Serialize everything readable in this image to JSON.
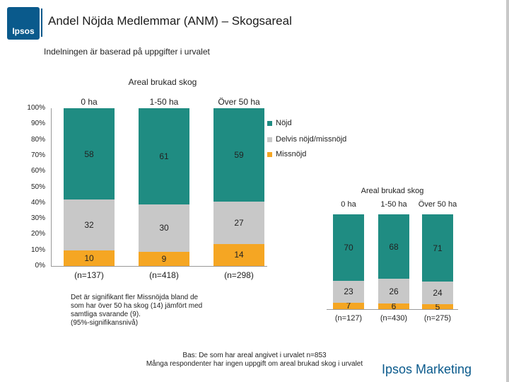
{
  "header": {
    "logo_text": "Ipsos",
    "title": "Andel Nöjda Medlemmar (ANM) – Skogsareal",
    "subtitle": "Indelningen är baserad på uppgifter i urvalet"
  },
  "chart_data": [
    {
      "type": "bar",
      "stacked": true,
      "title": "Areal brukad skog",
      "categories": [
        "0 ha",
        "1-50 ha",
        "Över 50 ha"
      ],
      "n_labels": [
        "(n=137)",
        "(n=418)",
        "(n=298)"
      ],
      "series": [
        {
          "name": "Missnöjd",
          "color": "#f5a623",
          "values": [
            10,
            9,
            14
          ]
        },
        {
          "name": "Delvis nöjd/missnöjd",
          "color": "#c8c8c8",
          "values": [
            32,
            30,
            27
          ]
        },
        {
          "name": "Nöjd",
          "color": "#1f8c82",
          "values": [
            58,
            61,
            59
          ]
        }
      ],
      "yticks": [
        "0%",
        "10%",
        "20%",
        "30%",
        "40%",
        "50%",
        "60%",
        "70%",
        "80%",
        "90%",
        "100%"
      ],
      "ylim": [
        0,
        100
      ],
      "legend": [
        "Nöjd",
        "Delvis nöjd/missnöjd",
        "Missnöjd"
      ],
      "legend_position": "right"
    },
    {
      "type": "bar",
      "stacked": true,
      "title": "Areal brukad skog",
      "categories": [
        "0 ha",
        "1-50 ha",
        "Över 50 ha"
      ],
      "n_labels": [
        "(n=127)",
        "(n=430)",
        "(n=275)"
      ],
      "series": [
        {
          "name": "Missnöjd",
          "color": "#f5a623",
          "values": [
            7,
            6,
            5
          ]
        },
        {
          "name": "Delvis nöjd/missnöjd",
          "color": "#c8c8c8",
          "values": [
            23,
            26,
            24
          ]
        },
        {
          "name": "Nöjd",
          "color": "#1f8c82",
          "values": [
            70,
            68,
            71
          ]
        }
      ],
      "ylim": [
        0,
        100
      ]
    }
  ],
  "note": {
    "lines": [
      "Det är signifikant fler Missnöjda bland de",
      "som har över 50 ha skog (14) jämfört med",
      "samtliga svarande (9).",
      "(95%-signifikansnivå)"
    ]
  },
  "footer": {
    "line1": "Bas: De som har areal angivet i urvalet n=853",
    "line2": "Många respondenter har ingen uppgift om areal brukad skog i urvalet",
    "brand": "Ipsos Marketing"
  },
  "colors": {
    "brand": "#0a5a8c",
    "satisfied": "#1f8c82",
    "neutral": "#c8c8c8",
    "dissatisfied": "#f5a623"
  }
}
